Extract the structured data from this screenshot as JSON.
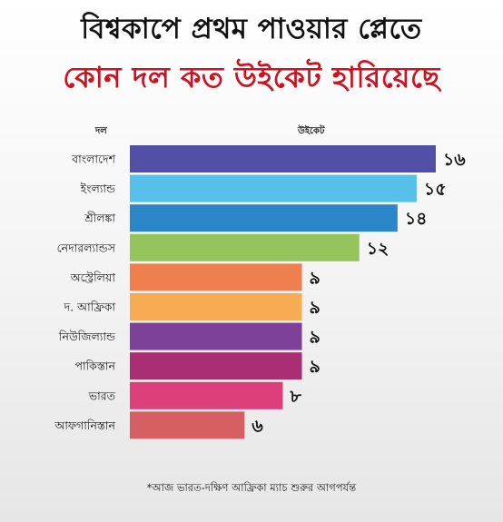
{
  "title_line1": "বিশ্বকাপে প্রথম পাওয়ার প্লেতে",
  "title_line2": "কোন দল কত উইকেট হারিয়েছে",
  "footnote": "*আজ ভারত-দক্ষিণ আফ্রিকা ম্যাচ শুরুর আগপর্যন্ত",
  "colors": {
    "title_accent": "#d0101f"
  },
  "chart_data": {
    "type": "bar",
    "orientation": "horizontal",
    "xlabel": "উইকেট",
    "ylabel": "দল",
    "categories": [
      "বাংলাদেশ",
      "ইংল্যান্ড",
      "শ্রীলঙ্কা",
      "নেদারল্যান্ডস",
      "অস্ট্রেলিয়া",
      "দ. আফ্রিকা",
      "নিউজিল্যান্ড",
      "পাকিস্তান",
      "ভারত",
      "আফগানিস্তান"
    ],
    "values": [
      16,
      15,
      14,
      12,
      9,
      9,
      9,
      9,
      8,
      6
    ],
    "value_labels": [
      "১৬",
      "১৫",
      "১৪",
      "১২",
      "৯",
      "৯",
      "৯",
      "৯",
      "৮",
      "৬"
    ],
    "bar_colors": [
      "#5150a6",
      "#55c0ea",
      "#2a86c6",
      "#96c45c",
      "#ef7f4e",
      "#f7ab52",
      "#7e4199",
      "#a92e73",
      "#dd3f7b",
      "#d65f63"
    ],
    "grid": false,
    "legend": "none"
  }
}
